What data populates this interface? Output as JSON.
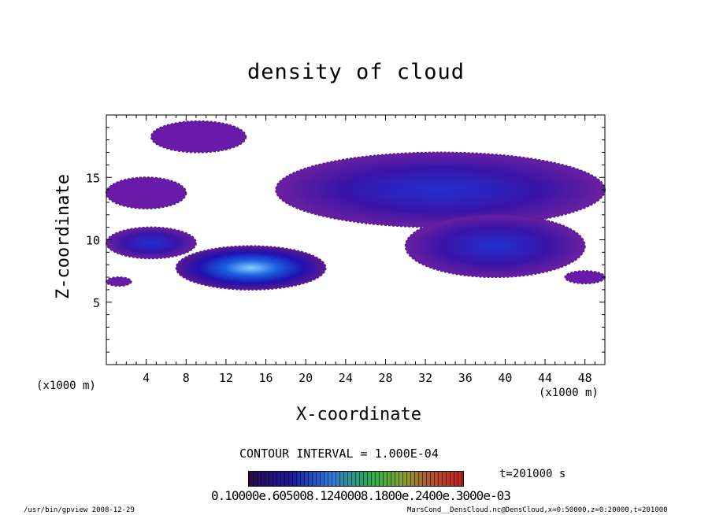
{
  "chart_data": {
    "type": "heatmap",
    "title": "density of cloud",
    "xlabel": "X-coordinate",
    "ylabel": "Z-coordinate",
    "x_unit": "(x1000 m)",
    "xlim": [
      0,
      50
    ],
    "ylim": [
      0,
      20
    ],
    "x_ticks": [
      4,
      8,
      12,
      16,
      20,
      24,
      28,
      32,
      36,
      40,
      44,
      48
    ],
    "y_ticks": [
      5,
      10,
      15
    ],
    "contour_interval_label": "CONTOUR INTERVAL = 1.000E-04",
    "time_label": "t=201000 s",
    "colorbar_labels": "0.10000e.605008.1240008.1800e.2400e.3000e-03",
    "colormap": [
      "#5a1a90",
      "#1a1ab0",
      "#2a7ad8",
      "#30c060",
      "#c02020"
    ],
    "cloud_regions": [
      {
        "x_range": [
          4.5,
          14
        ],
        "z_range": [
          17,
          19.5
        ],
        "density": "low"
      },
      {
        "x_range": [
          0,
          8
        ],
        "z_range": [
          12.5,
          15
        ],
        "density": "low"
      },
      {
        "x_range": [
          17,
          50
        ],
        "z_range": [
          11,
          17
        ],
        "density": "medium"
      },
      {
        "x_range": [
          0,
          9
        ],
        "z_range": [
          8.5,
          11
        ],
        "density": "medium"
      },
      {
        "x_range": [
          7,
          22
        ],
        "z_range": [
          6,
          9.5
        ],
        "density": "high"
      },
      {
        "x_range": [
          30,
          48
        ],
        "z_range": [
          7,
          12
        ],
        "density": "medium"
      },
      {
        "x_range": [
          0,
          2.5
        ],
        "z_range": [
          6.3,
          7
        ],
        "density": "low"
      },
      {
        "x_range": [
          46,
          50
        ],
        "z_range": [
          6.5,
          7.5
        ],
        "density": "low"
      }
    ]
  },
  "footer": {
    "left": "/usr/bin/gpview   2008-12-29",
    "right": "MarsCond__DensCloud.nc@DensCloud,x=0:50000,z=0:20000,t=201000"
  }
}
